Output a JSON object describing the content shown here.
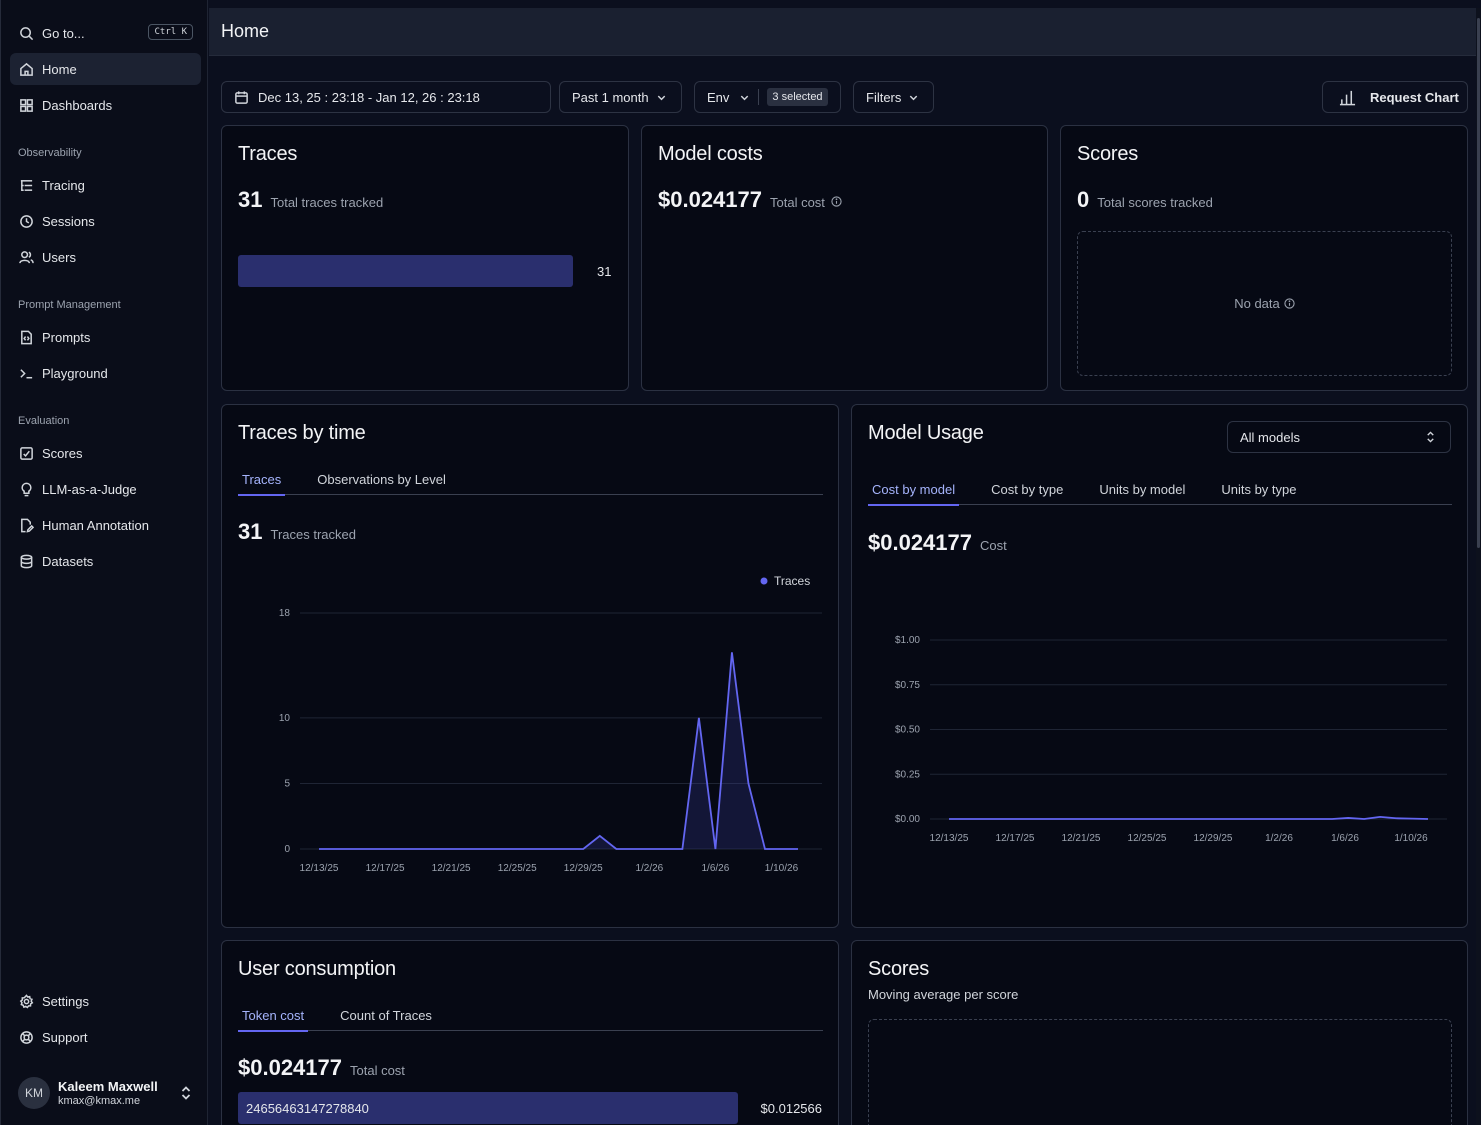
{
  "page_title": "Home",
  "sidebar": {
    "goto_label": "Go to...",
    "goto_shortcut": "Ctrl K",
    "home": "Home",
    "dashboards": "Dashboards",
    "section_observability": "Observability",
    "tracing": "Tracing",
    "sessions": "Sessions",
    "users": "Users",
    "section_prompt": "Prompt Management",
    "prompts": "Prompts",
    "playground": "Playground",
    "section_evaluation": "Evaluation",
    "scores": "Scores",
    "llm_judge": "LLM-as-a-Judge",
    "human_annotation": "Human Annotation",
    "datasets": "Datasets",
    "settings": "Settings",
    "support": "Support",
    "user_initials": "KM",
    "user_name": "Kaleem Maxwell",
    "user_email": "kmax@kmax.me"
  },
  "filters": {
    "date_range": "Dec 13, 25 : 23:18 - Jan 12, 26 : 23:18",
    "period": "Past 1 month",
    "env_label": "Env",
    "env_selected": "3 selected",
    "filters_label": "Filters",
    "request_chart": "Request Chart"
  },
  "traces_card": {
    "title": "Traces",
    "count": "31",
    "count_label": "Total traces tracked",
    "bar_value": "31"
  },
  "model_costs_card": {
    "title": "Model costs",
    "amount": "$0.024177",
    "amount_label": "Total cost"
  },
  "scores_card": {
    "title": "Scores",
    "count": "0",
    "count_label": "Total scores tracked",
    "empty": "No data"
  },
  "traces_by_time": {
    "title": "Traces by time",
    "tab_traces": "Traces",
    "tab_obs": "Observations by Level",
    "count": "31",
    "count_label": "Traces tracked",
    "legend": "Traces"
  },
  "model_usage": {
    "title": "Model Usage",
    "select": "All models",
    "tab1": "Cost by model",
    "tab2": "Cost by type",
    "tab3": "Units by model",
    "tab4": "Units by type",
    "amount": "$0.024177",
    "amount_label": "Cost"
  },
  "user_consumption": {
    "title": "User consumption",
    "tab1": "Token cost",
    "tab2": "Count of Traces",
    "amount": "$0.024177",
    "amount_label": "Total cost",
    "row_user": "24656463147278840",
    "row_value": "$0.012566"
  },
  "scores_bottom": {
    "title": "Scores",
    "subtitle": "Moving average per score"
  },
  "chart_data": [
    {
      "type": "line",
      "series": [
        {
          "name": "Traces",
          "values": [
            0,
            0,
            0,
            0,
            0,
            0,
            0,
            0,
            0,
            0,
            0,
            0,
            0,
            0,
            0,
            0,
            0,
            1,
            0,
            0,
            0,
            0,
            0,
            10,
            0,
            15,
            5,
            0,
            0,
            0
          ]
        }
      ],
      "x": [
        "12/13/25",
        "12/14/25",
        "12/15/25",
        "12/16/25",
        "12/17/25",
        "12/18/25",
        "12/19/25",
        "12/20/25",
        "12/21/25",
        "12/22/25",
        "12/23/25",
        "12/24/25",
        "12/25/25",
        "12/26/25",
        "12/27/25",
        "12/28/25",
        "12/29/25",
        "12/30/25",
        "12/31/25",
        "1/1/26",
        "1/2/26",
        "1/3/26",
        "1/4/26",
        "1/5/26",
        "1/6/26",
        "1/7/26",
        "1/8/26",
        "1/9/26",
        "1/10/26",
        "1/11/26"
      ],
      "x_ticks": [
        "12/13/25",
        "12/17/25",
        "12/21/25",
        "12/25/25",
        "12/29/25",
        "1/2/26",
        "1/6/26",
        "1/10/26"
      ],
      "y_ticks": [
        "0",
        "5",
        "10",
        "18"
      ],
      "ylim": [
        0,
        18
      ],
      "legend_position": "top-right",
      "grid": true
    },
    {
      "type": "line",
      "series": [
        {
          "name": "Cost",
          "values": [
            0,
            0,
            0,
            0,
            0,
            0,
            0,
            0,
            0,
            0,
            0,
            0,
            0,
            0,
            0,
            0,
            0,
            0,
            0,
            0,
            0,
            0,
            0,
            0,
            0,
            0.006,
            0,
            0.012,
            0.004,
            0.002,
            0
          ]
        }
      ],
      "x_ticks": [
        "12/13/25",
        "12/17/25",
        "12/21/25",
        "12/25/25",
        "12/29/25",
        "1/2/26",
        "1/6/26",
        "1/10/26"
      ],
      "y_ticks": [
        "$0.00",
        "$0.25",
        "$0.50",
        "$0.75",
        "$1.00"
      ],
      "ylim": [
        0,
        1
      ],
      "grid": true
    },
    {
      "type": "bar",
      "categories": [
        "24656463147278840"
      ],
      "values": [
        0.012566
      ],
      "value_labels": [
        "$0.012566"
      ]
    }
  ]
}
